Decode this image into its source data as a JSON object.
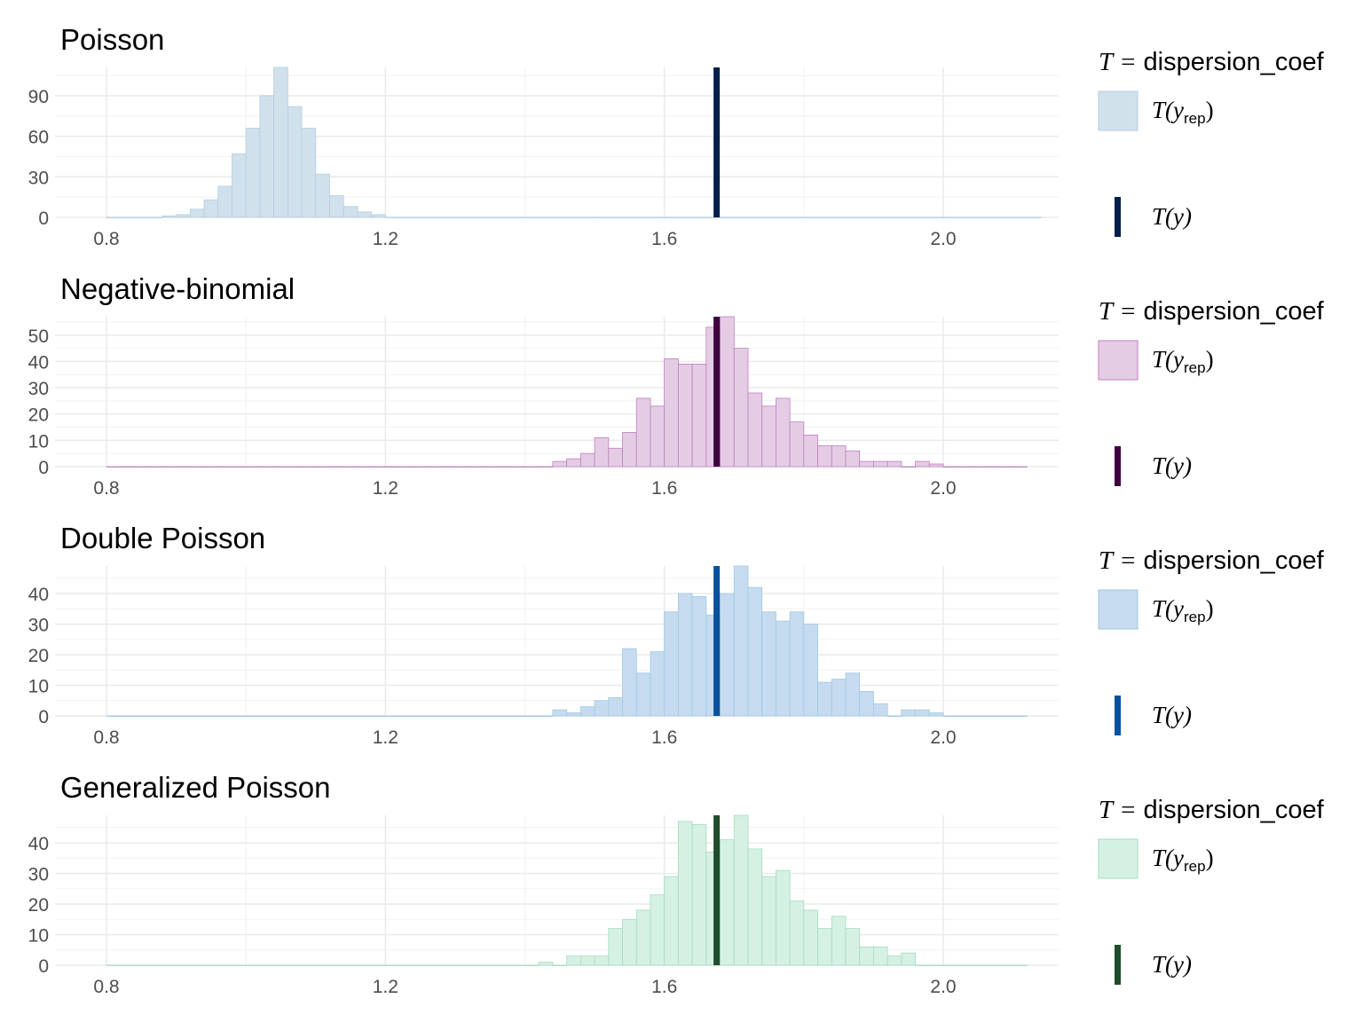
{
  "chart_data": [
    {
      "type": "bar",
      "title": "Poisson",
      "fill_color": "#d1e1ec",
      "outline_color": "#b3cde0",
      "observed_color": "#011f4b",
      "observed_value": 1.675,
      "xlim": [
        0.8,
        2.1
      ],
      "ylim": [
        0,
        111
      ],
      "x_ticks": [
        "0.8",
        "1.2",
        "1.6",
        "2.0"
      ],
      "y_ticks": [
        "0",
        "30",
        "60",
        "90"
      ],
      "bins_start": 0.8,
      "bin_width": 0.02,
      "values": [
        0,
        0,
        0,
        0,
        1,
        2,
        6,
        13,
        23,
        47,
        66,
        90,
        111,
        82,
        66,
        32,
        16,
        8,
        4,
        2,
        0,
        0,
        0,
        0,
        0,
        0,
        0,
        0,
        0,
        0,
        0,
        0,
        0,
        0,
        0,
        0,
        0,
        0,
        0,
        0,
        0,
        0,
        0,
        0,
        0,
        0,
        0,
        0,
        0,
        0,
        0,
        0,
        0,
        0,
        0,
        0,
        0,
        0,
        0,
        0,
        0,
        0,
        0,
        0,
        0,
        0,
        0
      ],
      "legend": {
        "title_var": "T",
        "title_eq": "=",
        "title_text": "dispersion_coef",
        "rep_label": "T(y",
        "rep_sub": "rep",
        "rep_close": ")",
        "obs_label": "T(y)"
      }
    },
    {
      "type": "bar",
      "title": "Negative-binomial",
      "fill_color": "#e5cce5",
      "outline_color": "#bf7fbf",
      "observed_color": "#3f003f",
      "observed_value": 1.675,
      "xlim": [
        0.8,
        2.1
      ],
      "ylim": [
        0,
        57
      ],
      "x_ticks": [
        "0.8",
        "1.2",
        "1.6",
        "2.0"
      ],
      "y_ticks": [
        "0",
        "10",
        "20",
        "30",
        "40",
        "50"
      ],
      "bins_start": 0.8,
      "bin_width": 0.02,
      "values": [
        0,
        0,
        0,
        0,
        0,
        0,
        0,
        0,
        0,
        0,
        0,
        0,
        0,
        0,
        0,
        0,
        0,
        0,
        0,
        0,
        0,
        0,
        0,
        0,
        0,
        0,
        0,
        0,
        0,
        0,
        0,
        0,
        2,
        3,
        5,
        11,
        7,
        13,
        26,
        23,
        41,
        39,
        39,
        53,
        57,
        45,
        28,
        23,
        26,
        17,
        12,
        8,
        8,
        6,
        2,
        2,
        2,
        0,
        2,
        1,
        0,
        0,
        0,
        0,
        0,
        0
      ],
      "legend": {
        "title_var": "T",
        "title_eq": "=",
        "title_text": "dispersion_coef",
        "rep_label": "T(y",
        "rep_sub": "rep",
        "rep_close": ")",
        "obs_label": "T(y)"
      }
    },
    {
      "type": "bar",
      "title": "Double Poisson",
      "fill_color": "#c6dbef",
      "outline_color": "#9ecae1",
      "observed_color": "#08519c",
      "observed_value": 1.675,
      "xlim": [
        0.8,
        2.1
      ],
      "ylim": [
        0,
        49
      ],
      "x_ticks": [
        "0.8",
        "1.2",
        "1.6",
        "2.0"
      ],
      "y_ticks": [
        "0",
        "10",
        "20",
        "30",
        "40"
      ],
      "bins_start": 0.8,
      "bin_width": 0.02,
      "values": [
        0,
        0,
        0,
        0,
        0,
        0,
        0,
        0,
        0,
        0,
        0,
        0,
        0,
        0,
        0,
        0,
        0,
        0,
        0,
        0,
        0,
        0,
        0,
        0,
        0,
        0,
        0,
        0,
        0,
        0,
        0,
        0,
        2,
        1,
        3,
        5,
        6,
        22,
        14,
        21,
        34,
        40,
        39,
        33,
        40,
        49,
        42,
        34,
        31,
        34,
        30,
        11,
        12,
        14,
        8,
        4,
        0,
        2,
        2,
        1,
        0,
        0,
        0,
        0,
        0,
        0
      ],
      "legend": {
        "title_var": "T",
        "title_eq": "=",
        "title_text": "dispersion_coef",
        "rep_label": "T(y",
        "rep_sub": "rep",
        "rep_close": ")",
        "obs_label": "T(y)"
      }
    },
    {
      "type": "bar",
      "title": "Generalized Poisson",
      "fill_color": "#d5f1e3",
      "outline_color": "#a6dbc0",
      "observed_color": "#1e4d2b",
      "observed_value": 1.675,
      "xlim": [
        0.8,
        2.1
      ],
      "ylim": [
        0,
        49
      ],
      "x_ticks": [
        "0.8",
        "1.2",
        "1.6",
        "2.0"
      ],
      "y_ticks": [
        "0",
        "10",
        "20",
        "30",
        "40"
      ],
      "bins_start": 0.8,
      "bin_width": 0.02,
      "values": [
        0,
        0,
        0,
        0,
        0,
        0,
        0,
        0,
        0,
        0,
        0,
        0,
        0,
        0,
        0,
        0,
        0,
        0,
        0,
        0,
        0,
        0,
        0,
        0,
        0,
        0,
        0,
        0,
        0,
        0,
        0,
        1,
        0,
        3,
        3,
        3,
        12,
        15,
        18,
        23,
        29,
        47,
        46,
        37,
        41,
        49,
        38,
        29,
        31,
        21,
        18,
        12,
        16,
        12,
        6,
        6,
        3,
        4,
        0,
        0,
        0,
        0,
        0,
        0,
        0,
        0
      ],
      "legend": {
        "title_var": "T",
        "title_eq": "=",
        "title_text": "dispersion_coef",
        "rep_label": "T(y",
        "rep_sub": "rep",
        "rep_close": ")",
        "obs_label": "T(y)"
      }
    }
  ]
}
